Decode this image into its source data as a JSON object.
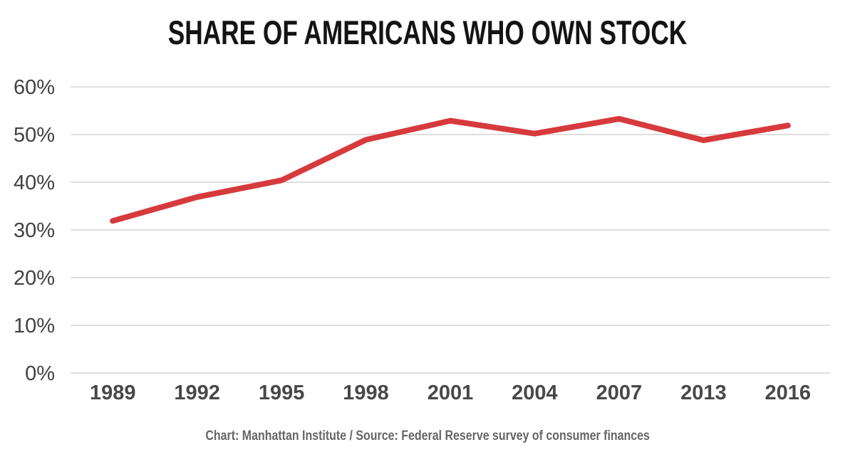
{
  "title": "SHARE OF AMERICANS WHO OWN STOCK",
  "footer": {
    "text": "Chart: Manhattan Institute  /  Source: Federal Reserve survey of consumer finances"
  },
  "colors": {
    "background": "#ffffff",
    "line": "#d73a3c",
    "grid": "#d9d9d9",
    "title_text": "#141414",
    "y_tick_text": "#414141",
    "x_tick_text": "#484848",
    "footer_text": "#666666"
  },
  "chart_data": {
    "type": "line",
    "title": "SHARE OF AMERICANS WHO OWN STOCK",
    "categories": [
      "1989",
      "1992",
      "1995",
      "1998",
      "2001",
      "2004",
      "2007",
      "2013",
      "2016"
    ],
    "series": [
      {
        "name": "Share of Americans who own stock",
        "values": [
          31.9,
          36.9,
          40.4,
          48.9,
          52.9,
          50.2,
          53.3,
          48.8,
          51.9
        ]
      }
    ],
    "xlabel": "",
    "ylabel": "",
    "ylim": [
      0,
      60
    ],
    "ytick_step": 10,
    "ytick_labels": [
      "0%",
      "10%",
      "20%",
      "30%",
      "40%",
      "50%",
      "60%"
    ],
    "grid": "horizontal",
    "legend": "none",
    "attribution": "Chart: Manhattan Institute  /  Source: Federal Reserve survey of consumer finances"
  }
}
